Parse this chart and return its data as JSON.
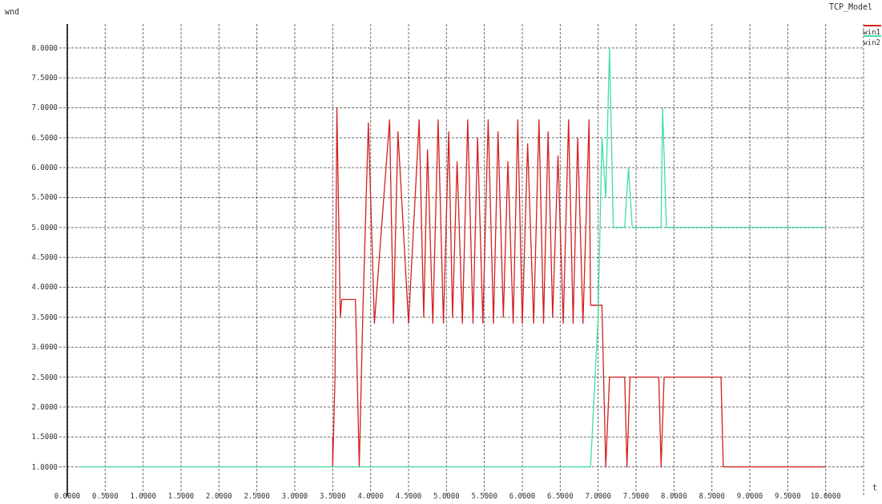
{
  "chart_data": {
    "type": "line",
    "title": "TCP_Model",
    "xlabel": "t",
    "ylabel": "wnd",
    "legend": "top right",
    "grid": true,
    "marker": "none",
    "line_style": "solid",
    "xlim": [
      0,
      10.5
    ],
    "ylim": [
      0.5,
      8.4
    ],
    "xticks": [
      {
        "value": 0,
        "label": "0.0000"
      },
      {
        "value": 0.5,
        "label": "0.5000"
      },
      {
        "value": 1,
        "label": "1.0000"
      },
      {
        "value": 1.5,
        "label": "1.5000"
      },
      {
        "value": 2,
        "label": "2.0000"
      },
      {
        "value": 2.5,
        "label": "2.5000"
      },
      {
        "value": 3,
        "label": "3.0000"
      },
      {
        "value": 3.5,
        "label": "3.5000"
      },
      {
        "value": 4,
        "label": "4.0000"
      },
      {
        "value": 4.5,
        "label": "4.5000"
      },
      {
        "value": 5,
        "label": "5.0000"
      },
      {
        "value": 5.5,
        "label": "5.5000"
      },
      {
        "value": 6,
        "label": "6.0000"
      },
      {
        "value": 6.5,
        "label": "6.5000"
      },
      {
        "value": 7,
        "label": "7.0000"
      },
      {
        "value": 7.5,
        "label": "7.5000"
      },
      {
        "value": 8,
        "label": "8.0000"
      },
      {
        "value": 8.5,
        "label": "8.5000"
      },
      {
        "value": 9,
        "label": "9.0000"
      },
      {
        "value": 9.5,
        "label": "9.5000"
      },
      {
        "value": 10,
        "label": "10.0000"
      },
      {
        "value": 10.5,
        "label": null
      }
    ],
    "yticks": [
      {
        "value": 1,
        "label": "1.0000"
      },
      {
        "value": 1.5,
        "label": "1.5000"
      },
      {
        "value": 2,
        "label": "2.0000"
      },
      {
        "value": 2.5,
        "label": "2.5000"
      },
      {
        "value": 3,
        "label": "3.0000"
      },
      {
        "value": 3.5,
        "label": "3.5000"
      },
      {
        "value": 4,
        "label": "4.0000"
      },
      {
        "value": 4.5,
        "label": "4.5000"
      },
      {
        "value": 5,
        "label": "5.0000"
      },
      {
        "value": 5.5,
        "label": "5.5000"
      },
      {
        "value": 6,
        "label": "6.0000"
      },
      {
        "value": 6.5,
        "label": "6.5000"
      },
      {
        "value": 7,
        "label": "7.0000"
      },
      {
        "value": 7.5,
        "label": "7.5000"
      },
      {
        "value": 8,
        "label": "8.0000"
      }
    ],
    "series": [
      {
        "name": "win1",
        "color": "#d42020",
        "x": [
          3.5,
          3.5,
          3.5,
          3.53,
          3.555,
          3.6,
          3.62,
          3.8,
          3.8,
          3.85,
          3.9,
          3.97,
          4.05,
          4.25,
          4.3,
          4.36,
          4.5,
          4.64,
          4.7,
          4.75,
          4.82,
          4.89,
          4.96,
          5.03,
          5.08,
          5.14,
          5.21,
          5.28,
          5.35,
          5.41,
          5.48,
          5.55,
          5.62,
          5.68,
          5.75,
          5.81,
          5.88,
          5.94,
          6.0,
          6.07,
          6.15,
          6.22,
          6.28,
          6.34,
          6.4,
          6.47,
          6.54,
          6.61,
          6.67,
          6.73,
          6.8,
          6.88,
          6.9,
          7.05,
          7.1,
          7.15,
          7.35,
          7.38,
          7.42,
          7.8,
          7.83,
          7.87,
          8.62,
          8.65,
          10.0
        ],
        "values": [
          1.0,
          1.5,
          1.0,
          2.5,
          7.0,
          3.5,
          3.8,
          3.8,
          3.8,
          1.0,
          3.7,
          6.75,
          3.4,
          6.8,
          3.4,
          6.6,
          3.4,
          6.8,
          3.5,
          6.3,
          3.4,
          6.8,
          3.4,
          6.6,
          3.5,
          6.1,
          3.4,
          6.8,
          3.4,
          6.5,
          3.4,
          6.8,
          3.4,
          6.6,
          3.5,
          6.1,
          3.4,
          6.8,
          3.4,
          6.4,
          3.4,
          6.8,
          3.4,
          6.6,
          3.5,
          6.2,
          3.4,
          6.8,
          3.4,
          6.5,
          3.4,
          6.8,
          3.7,
          3.7,
          1.0,
          2.5,
          2.5,
          1.0,
          2.5,
          2.5,
          1.0,
          2.5,
          2.5,
          1.0,
          1.0
        ]
      },
      {
        "name": "win2",
        "color": "#40e0a0",
        "x": [
          0.15,
          6.9,
          7.0,
          7.05,
          7.1,
          7.15,
          7.2,
          7.35,
          7.4,
          7.45,
          7.83,
          7.85,
          7.9,
          10.0
        ],
        "values": [
          1.0,
          1.0,
          3.5,
          6.5,
          5.5,
          8.0,
          5.0,
          5.0,
          6.0,
          5.0,
          5.0,
          7.0,
          5.0,
          5.0
        ]
      }
    ]
  }
}
